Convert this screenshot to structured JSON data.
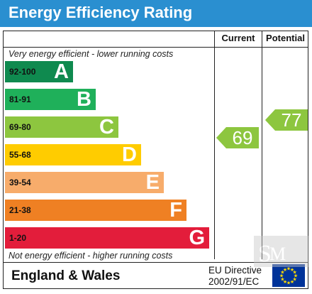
{
  "chart_data": {
    "type": "bar",
    "title": "Energy Efficiency Rating",
    "columns": [
      "Current",
      "Potential"
    ],
    "top_note": "Very energy efficient - lower running costs",
    "bottom_note": "Not energy efficient - higher running costs",
    "bands": [
      {
        "range": "92-100",
        "letter": "A",
        "color": "#0f8a4f"
      },
      {
        "range": "81-91",
        "letter": "B",
        "color": "#1fb05a"
      },
      {
        "range": "69-80",
        "letter": "C",
        "color": "#8dc63f"
      },
      {
        "range": "55-68",
        "letter": "D",
        "color": "#ffcc00"
      },
      {
        "range": "39-54",
        "letter": "E",
        "color": "#f7ac6b"
      },
      {
        "range": "21-38",
        "letter": "F",
        "color": "#ef8023"
      },
      {
        "range": "1-20",
        "letter": "G",
        "color": "#e31d3b"
      }
    ],
    "current": {
      "value": 69,
      "band": "C",
      "color": "#8dc63f"
    },
    "potential": {
      "value": 77,
      "band": "C",
      "color": "#8dc63f"
    }
  },
  "footer": {
    "region": "England & Wales",
    "directive_line1": "EU Directive",
    "directive_line2": "2002/91/EC"
  },
  "colors": {
    "title_bar": "#2a8fd0",
    "eu_flag": "#003399",
    "eu_stars": "#ffdd00"
  }
}
